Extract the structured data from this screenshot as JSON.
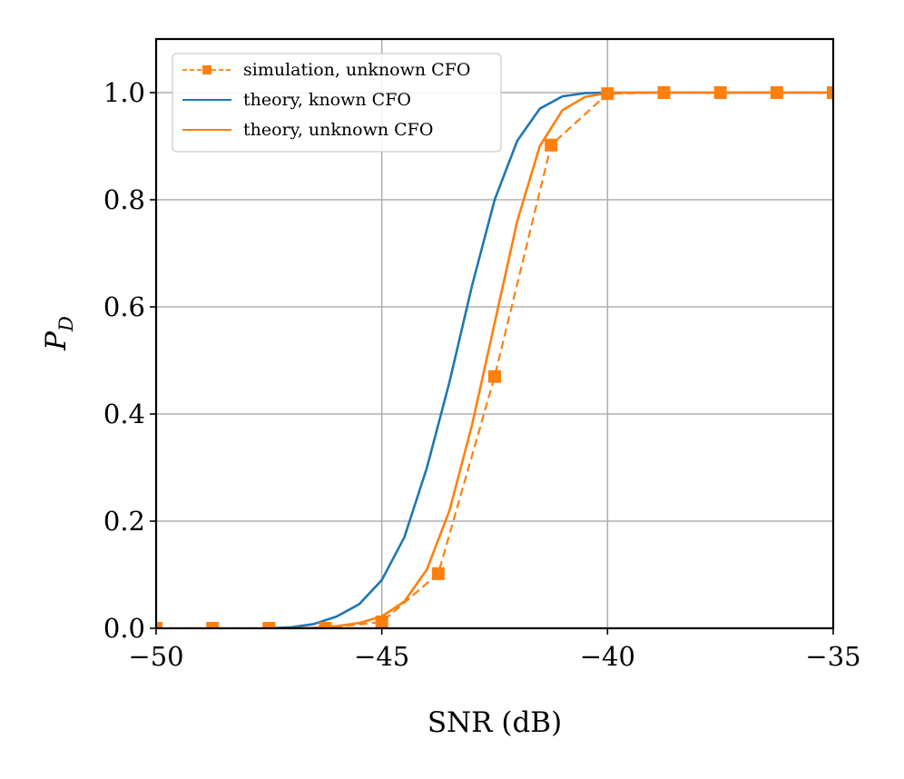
{
  "chart_data": {
    "type": "line",
    "title": "",
    "xlabel": "SNR (dB)",
    "ylabel_main": "P",
    "ylabel_sub": "D",
    "xlim": [
      -50,
      -35
    ],
    "ylim": [
      0,
      1.1
    ],
    "grid": true,
    "legend_position": "top-left",
    "x_ticks": [
      -50,
      -45,
      -40,
      -35
    ],
    "x_tick_labels": [
      "−50",
      "−45",
      "−40",
      "−35"
    ],
    "y_ticks": [
      0.0,
      0.2,
      0.4,
      0.6,
      0.8,
      1.0
    ],
    "y_tick_labels": [
      "0.0",
      "0.2",
      "0.4",
      "0.6",
      "0.8",
      "1.0"
    ],
    "series": [
      {
        "name": "simulation, unknown CFO",
        "style": "dashed-markers",
        "color": "#ff7f0e",
        "x": [
          -50.0,
          -48.75,
          -47.5,
          -46.25,
          -45.0,
          -43.75,
          -42.5,
          -41.25,
          -40.0,
          -38.75,
          -37.5,
          -36.25,
          -35.0
        ],
        "y": [
          0.0,
          0.0,
          0.0,
          0.0,
          0.012,
          0.102,
          0.47,
          0.902,
          0.998,
          1.0,
          1.0,
          1.0,
          1.0
        ]
      },
      {
        "name": "theory, known CFO",
        "style": "solid",
        "color": "#1f77b4",
        "x": [
          -47.5,
          -47.0,
          -46.5,
          -46.0,
          -45.5,
          -45.0,
          -44.5,
          -44.0,
          -43.5,
          -43.0,
          -42.5,
          -42.0,
          -41.5,
          -41.0,
          -40.5,
          -40.0,
          -39.5,
          -35.0
        ],
        "y": [
          0.0,
          0.002,
          0.008,
          0.022,
          0.045,
          0.09,
          0.17,
          0.3,
          0.46,
          0.64,
          0.8,
          0.91,
          0.97,
          0.993,
          0.999,
          1.0,
          1.0,
          1.0
        ]
      },
      {
        "name": "theory, unknown CFO",
        "style": "solid",
        "color": "#ff7f0e",
        "x": [
          -47.0,
          -46.5,
          -46.0,
          -45.5,
          -45.0,
          -44.5,
          -44.0,
          -43.5,
          -43.0,
          -42.5,
          -42.0,
          -41.5,
          -41.0,
          -40.5,
          -40.0,
          -39.5,
          -35.0
        ],
        "y": [
          0.0,
          0.001,
          0.004,
          0.01,
          0.022,
          0.05,
          0.11,
          0.22,
          0.38,
          0.57,
          0.76,
          0.9,
          0.967,
          0.992,
          0.999,
          1.0,
          1.0
        ]
      }
    ]
  }
}
